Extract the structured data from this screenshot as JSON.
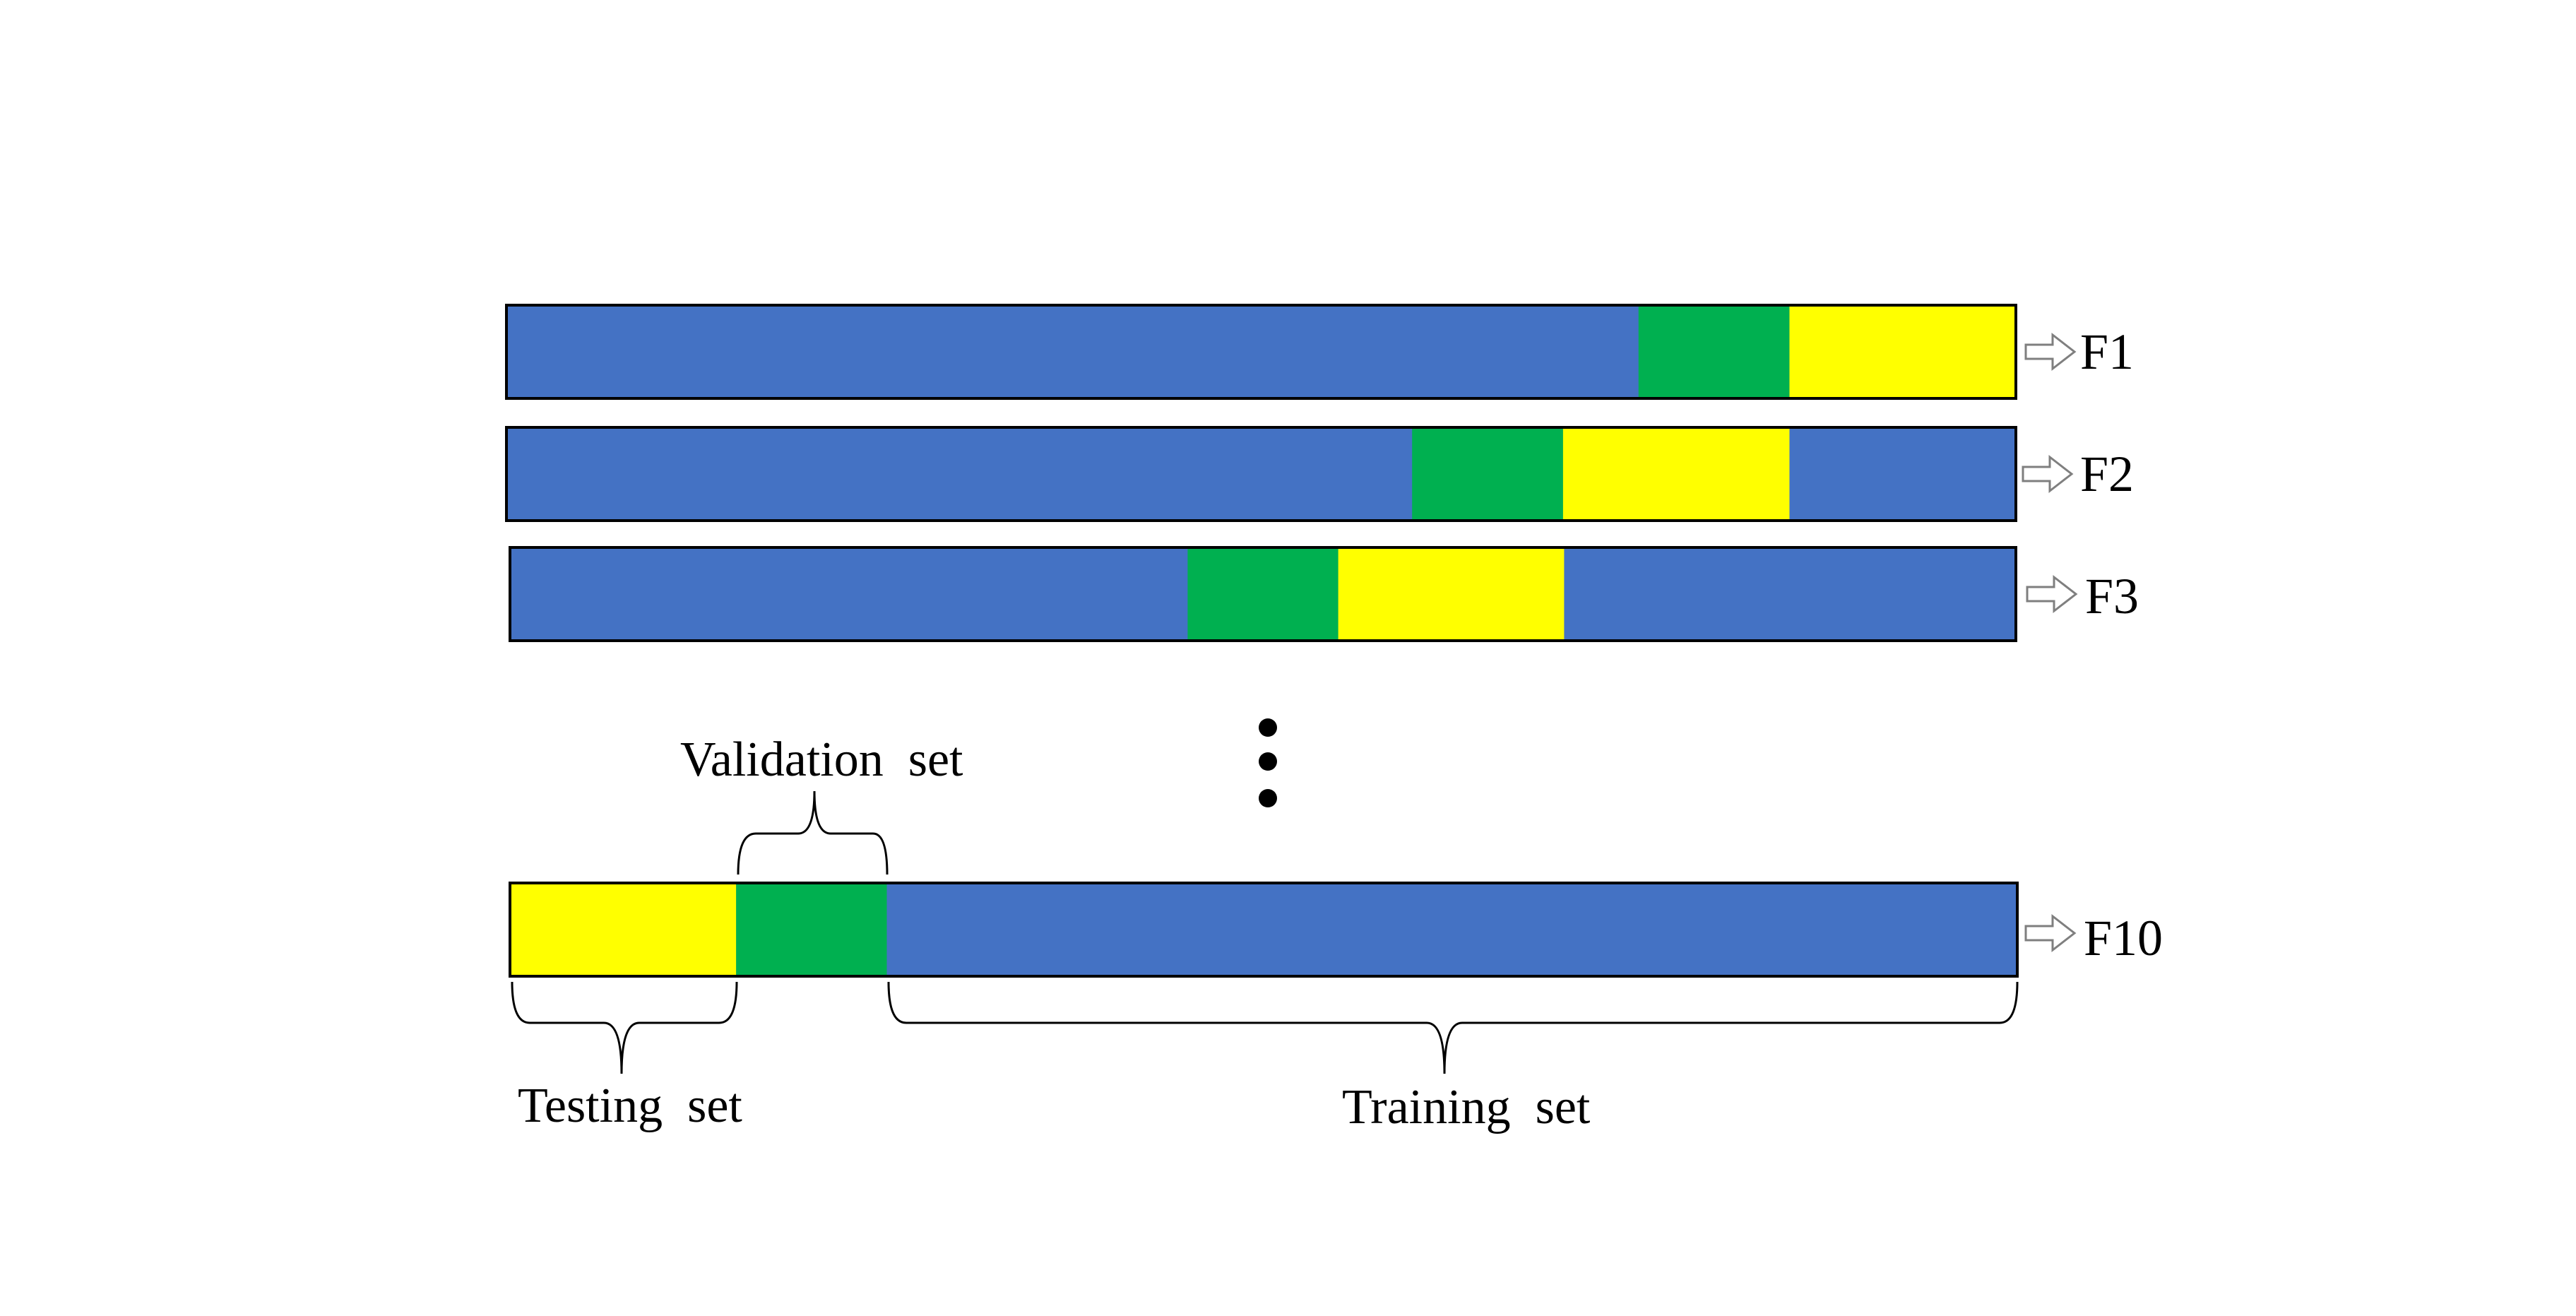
{
  "colors": {
    "training": "#4472C4",
    "validation": "#00B050",
    "testing": "#FFFF00",
    "border": "#000000",
    "dots": "#000000",
    "arrow_outline": "#7F7F7F"
  },
  "folds": [
    {
      "label": "F1",
      "segments": [
        {
          "role": "training",
          "fraction": 0.75
        },
        {
          "role": "validation",
          "fraction": 0.1
        },
        {
          "role": "testing",
          "fraction": 0.15
        }
      ]
    },
    {
      "label": "F2",
      "segments": [
        {
          "role": "training",
          "fraction": 0.6
        },
        {
          "role": "validation",
          "fraction": 0.1
        },
        {
          "role": "testing",
          "fraction": 0.15
        },
        {
          "role": "training",
          "fraction": 0.15
        }
      ]
    },
    {
      "label": "F3",
      "segments": [
        {
          "role": "training",
          "fraction": 0.45
        },
        {
          "role": "validation",
          "fraction": 0.1
        },
        {
          "role": "testing",
          "fraction": 0.15
        },
        {
          "role": "training",
          "fraction": 0.3
        }
      ]
    },
    {
      "label": "F10",
      "segments": [
        {
          "role": "testing",
          "fraction": 0.15
        },
        {
          "role": "validation",
          "fraction": 0.1
        },
        {
          "role": "training",
          "fraction": 0.75
        }
      ]
    }
  ],
  "annotations": {
    "validation_label": "Validation  set",
    "testing_label": "Testing  set",
    "training_label": "Training  set"
  },
  "icons": {
    "fold_arrow": "hollow-right-arrow-icon",
    "ellipsis": "vertical-ellipsis-icon",
    "brace": "curly-brace-icon"
  }
}
